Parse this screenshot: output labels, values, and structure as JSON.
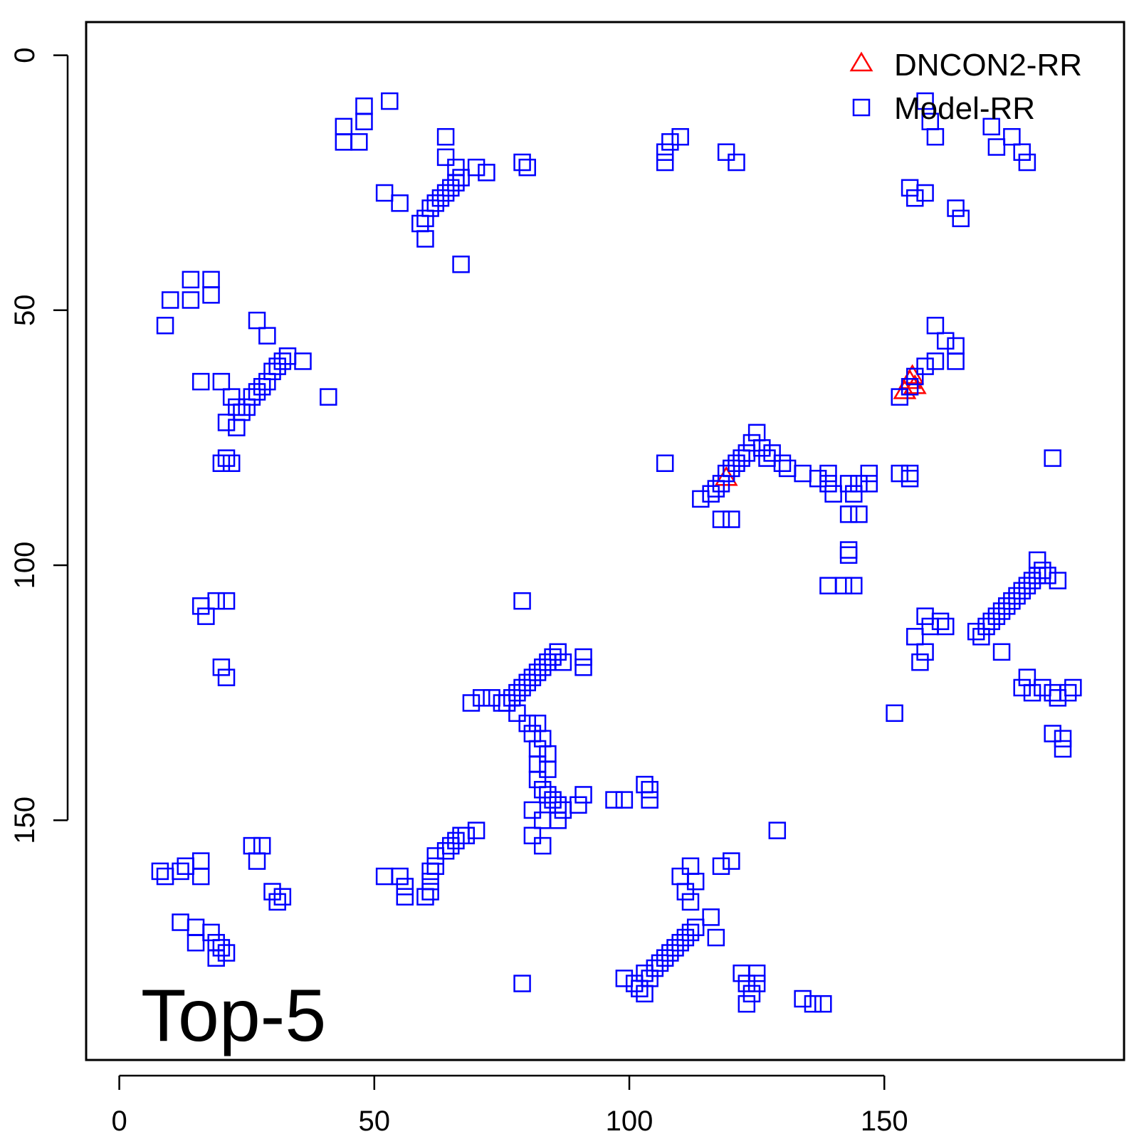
{
  "chart_data": {
    "type": "scatter",
    "title": "",
    "xlabel": "",
    "ylabel": "",
    "xlim": [
      -6.5,
      197
    ],
    "ylim": [
      -6.5,
      197
    ],
    "y_inverted": true,
    "x_ticks": [
      0,
      50,
      100,
      150
    ],
    "y_ticks": [
      0,
      50,
      100,
      150
    ],
    "x_tick_labels": [
      "0",
      "50",
      "100",
      "150"
    ],
    "y_tick_labels": [
      "0",
      "50",
      "100",
      "150"
    ],
    "grid": false,
    "legend_position": "top-right",
    "annotation": "Top-5",
    "series": [
      {
        "name": "DNCON2-RR",
        "marker": "triangle",
        "color": "#ff0000",
        "points": [
          [
            119,
            83
          ],
          [
            154,
            66
          ],
          [
            155,
            64
          ],
          [
            155.5,
            63
          ],
          [
            156,
            65
          ]
        ]
      },
      {
        "name": "Model-RR",
        "marker": "square",
        "color": "#0000ff",
        "points": [
          [
            44,
            14
          ],
          [
            44,
            17
          ],
          [
            48,
            13
          ],
          [
            48,
            10
          ],
          [
            47,
            17
          ],
          [
            53,
            9
          ],
          [
            52,
            27
          ],
          [
            55,
            29
          ],
          [
            59,
            33
          ],
          [
            60,
            32
          ],
          [
            61,
            30
          ],
          [
            62,
            29
          ],
          [
            63,
            28
          ],
          [
            64,
            27
          ],
          [
            65,
            26
          ],
          [
            66,
            25
          ],
          [
            67,
            24
          ],
          [
            60,
            36
          ],
          [
            64,
            16
          ],
          [
            64,
            20
          ],
          [
            66,
            22
          ],
          [
            70,
            22
          ],
          [
            72,
            23
          ],
          [
            67,
            41
          ],
          [
            79,
            21
          ],
          [
            80,
            22
          ],
          [
            107,
            19
          ],
          [
            108,
            17
          ],
          [
            110,
            16
          ],
          [
            107,
            21
          ],
          [
            119,
            19
          ],
          [
            121,
            21
          ],
          [
            158,
            9
          ],
          [
            159,
            13
          ],
          [
            160,
            16
          ],
          [
            171,
            14
          ],
          [
            172,
            18
          ],
          [
            175,
            16
          ],
          [
            177,
            19
          ],
          [
            178,
            21
          ],
          [
            155,
            26
          ],
          [
            156,
            28
          ],
          [
            158,
            27
          ],
          [
            164,
            30
          ],
          [
            165,
            32
          ],
          [
            9,
            53
          ],
          [
            10,
            48
          ],
          [
            14,
            48
          ],
          [
            14,
            44
          ],
          [
            18,
            44
          ],
          [
            18,
            47
          ],
          [
            27,
            52
          ],
          [
            29,
            55
          ],
          [
            16,
            64
          ],
          [
            20,
            64
          ],
          [
            22,
            67
          ],
          [
            23,
            69
          ],
          [
            24,
            70
          ],
          [
            25,
            69
          ],
          [
            26,
            67
          ],
          [
            27,
            66
          ],
          [
            28,
            65
          ],
          [
            29,
            64
          ],
          [
            30,
            62
          ],
          [
            31,
            61
          ],
          [
            32,
            60
          ],
          [
            33,
            59
          ],
          [
            36,
            60
          ],
          [
            41,
            67
          ],
          [
            21,
            72
          ],
          [
            23,
            73
          ],
          [
            20,
            80
          ],
          [
            21,
            79
          ],
          [
            22,
            80
          ],
          [
            160,
            53
          ],
          [
            162,
            56
          ],
          [
            164,
            57
          ],
          [
            160,
            60
          ],
          [
            164,
            60
          ],
          [
            158,
            61
          ],
          [
            156,
            63
          ],
          [
            155,
            65
          ],
          [
            153,
            67
          ],
          [
            107,
            80
          ],
          [
            114,
            87
          ],
          [
            116,
            86
          ],
          [
            117,
            85
          ],
          [
            118,
            84
          ],
          [
            119,
            82
          ],
          [
            120,
            81
          ],
          [
            121,
            80
          ],
          [
            122,
            79
          ],
          [
            123,
            78
          ],
          [
            124,
            76
          ],
          [
            125,
            74
          ],
          [
            126,
            77
          ],
          [
            127,
            79
          ],
          [
            128,
            78
          ],
          [
            130,
            80
          ],
          [
            131,
            81
          ],
          [
            134,
            82
          ],
          [
            137,
            83
          ],
          [
            139,
            82
          ],
          [
            139,
            84
          ],
          [
            140,
            86
          ],
          [
            143,
            84
          ],
          [
            144,
            86
          ],
          [
            145,
            84
          ],
          [
            147,
            82
          ],
          [
            147,
            84
          ],
          [
            153,
            82
          ],
          [
            155,
            82
          ],
          [
            155,
            83
          ],
          [
            143,
            90
          ],
          [
            145,
            90
          ],
          [
            118,
            91
          ],
          [
            120,
            91
          ],
          [
            143,
            97
          ],
          [
            143,
            98
          ],
          [
            139,
            104
          ],
          [
            142,
            104
          ],
          [
            144,
            104
          ],
          [
            183,
            79
          ],
          [
            16,
            108
          ],
          [
            17,
            110
          ],
          [
            19,
            107
          ],
          [
            21,
            107
          ],
          [
            20,
            120
          ],
          [
            21,
            122
          ],
          [
            79,
            107
          ],
          [
            86,
            117
          ],
          [
            85,
            118
          ],
          [
            84,
            119
          ],
          [
            83,
            120
          ],
          [
            82,
            121
          ],
          [
            81,
            122
          ],
          [
            80,
            123
          ],
          [
            79,
            124
          ],
          [
            78,
            125
          ],
          [
            77,
            126
          ],
          [
            76,
            127
          ],
          [
            75,
            127
          ],
          [
            73,
            126
          ],
          [
            71,
            126
          ],
          [
            69,
            127
          ],
          [
            78,
            129
          ],
          [
            80,
            131
          ],
          [
            82,
            131
          ],
          [
            81,
            133
          ],
          [
            83,
            134
          ],
          [
            82,
            136
          ],
          [
            84,
            137
          ],
          [
            82,
            139
          ],
          [
            84,
            140
          ],
          [
            82,
            142
          ],
          [
            83,
            144
          ],
          [
            84,
            145
          ],
          [
            85,
            146
          ],
          [
            86,
            147
          ],
          [
            87,
            148
          ],
          [
            81,
            148
          ],
          [
            83,
            150
          ],
          [
            86,
            150
          ],
          [
            81,
            153
          ],
          [
            83,
            155
          ],
          [
            91,
            118
          ],
          [
            91,
            120
          ],
          [
            87,
            119
          ],
          [
            91,
            145
          ],
          [
            90,
            147
          ],
          [
            97,
            146
          ],
          [
            99,
            146
          ],
          [
            103,
            143
          ],
          [
            104,
            144
          ],
          [
            104,
            146
          ],
          [
            158,
            110
          ],
          [
            159,
            112
          ],
          [
            161,
            111
          ],
          [
            156,
            114
          ],
          [
            158,
            117
          ],
          [
            157,
            119
          ],
          [
            152,
            129
          ],
          [
            162,
            112
          ],
          [
            168,
            113
          ],
          [
            169,
            114
          ],
          [
            170,
            112
          ],
          [
            171,
            111
          ],
          [
            172,
            110
          ],
          [
            173,
            109
          ],
          [
            174,
            108
          ],
          [
            175,
            107
          ],
          [
            176,
            106
          ],
          [
            177,
            105
          ],
          [
            178,
            104
          ],
          [
            179,
            103
          ],
          [
            180,
            102
          ],
          [
            181,
            101
          ],
          [
            180,
            99
          ],
          [
            182,
            102
          ],
          [
            184,
            103
          ],
          [
            173,
            117
          ],
          [
            178,
            122
          ],
          [
            177,
            124
          ],
          [
            179,
            125
          ],
          [
            181,
            124
          ],
          [
            183,
            125
          ],
          [
            184,
            126
          ],
          [
            186,
            125
          ],
          [
            187,
            124
          ],
          [
            183,
            133
          ],
          [
            185,
            134
          ],
          [
            185,
            136
          ],
          [
            8,
            160
          ],
          [
            9,
            161
          ],
          [
            12,
            160
          ],
          [
            13,
            159
          ],
          [
            16,
            158
          ],
          [
            16,
            161
          ],
          [
            26,
            155
          ],
          [
            28,
            155
          ],
          [
            27,
            158
          ],
          [
            30,
            164
          ],
          [
            32,
            165
          ],
          [
            31,
            166
          ],
          [
            12,
            170
          ],
          [
            15,
            171
          ],
          [
            18,
            172
          ],
          [
            15,
            174
          ],
          [
            19,
            174
          ],
          [
            19,
            177
          ],
          [
            21,
            176
          ],
          [
            20,
            175
          ],
          [
            52,
            161
          ],
          [
            55,
            161
          ],
          [
            56,
            163
          ],
          [
            56,
            165
          ],
          [
            60,
            165
          ],
          [
            61,
            164
          ],
          [
            61,
            162
          ],
          [
            61,
            160
          ],
          [
            62,
            159
          ],
          [
            62,
            157
          ],
          [
            64,
            156
          ],
          [
            65,
            155
          ],
          [
            66,
            154
          ],
          [
            67,
            153
          ],
          [
            68,
            153
          ],
          [
            70,
            152
          ],
          [
            79,
            182
          ],
          [
            99,
            181
          ],
          [
            101,
            182
          ],
          [
            102,
            183
          ],
          [
            103,
            180
          ],
          [
            104,
            181
          ],
          [
            105,
            179
          ],
          [
            106,
            178
          ],
          [
            107,
            177
          ],
          [
            108,
            176
          ],
          [
            109,
            175
          ],
          [
            110,
            174
          ],
          [
            111,
            173
          ],
          [
            112,
            172
          ],
          [
            113,
            171
          ],
          [
            112,
            166
          ],
          [
            111,
            164
          ],
          [
            110,
            161
          ],
          [
            112,
            159
          ],
          [
            113,
            162
          ],
          [
            116,
            169
          ],
          [
            117,
            173
          ],
          [
            118,
            159
          ],
          [
            120,
            158
          ],
          [
            122,
            180
          ],
          [
            123,
            182
          ],
          [
            124,
            184
          ],
          [
            123,
            186
          ],
          [
            125,
            180
          ],
          [
            125,
            182
          ],
          [
            129,
            152
          ],
          [
            134,
            185
          ],
          [
            136,
            186
          ],
          [
            138,
            186
          ],
          [
            103,
            184
          ]
        ]
      }
    ]
  }
}
